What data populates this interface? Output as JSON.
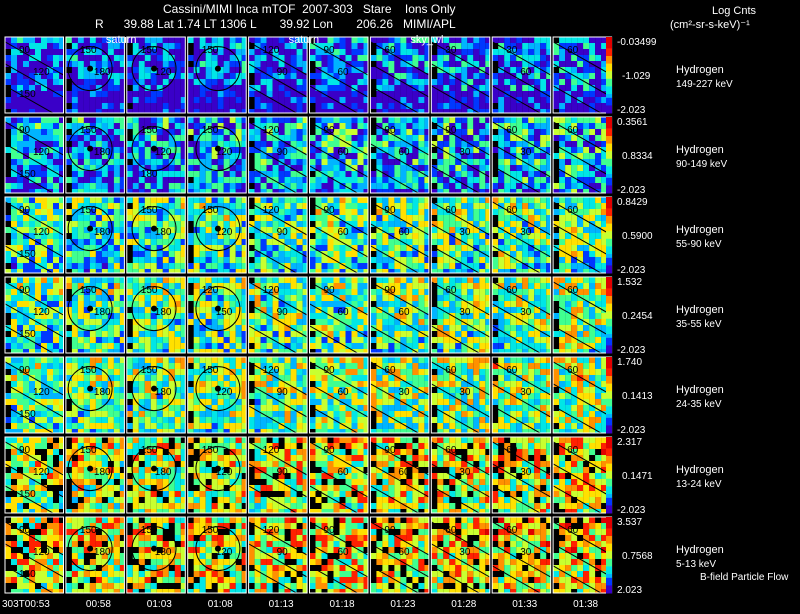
{
  "header": {
    "title": "Cassini/MIMI Inca mTOF  2007-303   Stare    Ions Only",
    "position_line": "R      39.88 Lat 1.74 LT 1306 L       39.92 Lon       206.26   MIMI/APL",
    "units_title": "Log Cnts",
    "units": "(cm²-sr-s-keV)⁻¹"
  },
  "footer_note": "B-field Particle Flow",
  "chart_data": {
    "type": "heatmap",
    "title": "Cassini/MIMI Inca mTOF  2007-303   Stare    Ions Only",
    "times": [
      "303T00:53",
      "00:58",
      "01:03",
      "01:08",
      "01:13",
      "01:18",
      "01:23",
      "01:28",
      "01:33",
      "01:38"
    ],
    "frame_annotations": [
      {
        "frame": 1,
        "text": "saturn"
      },
      {
        "frame": 4,
        "text": "saturn"
      },
      {
        "frame": 6,
        "text": "sky_wl"
      }
    ],
    "colorscale": [
      "#3a00c8",
      "#0038ff",
      "#00b4ff",
      "#00e6e6",
      "#40ff90",
      "#c8ff30",
      "#ffe000",
      "#ff9000",
      "#ff2000",
      "#e00000"
    ],
    "channels": [
      {
        "species": "Hydrogen",
        "energy": "149-227 keV",
        "max": "-0.03499",
        "mid": "-1.029",
        "min": "-2.023",
        "contours": [
          [
            "90",
            "120",
            "150"
          ],
          [
            "150",
            "180"
          ],
          [
            "150",
            "120"
          ],
          [
            "150"
          ],
          [
            "120",
            "90"
          ],
          [
            "90",
            "60"
          ],
          [
            "60"
          ],
          [
            "30"
          ],
          [
            "30",
            "60"
          ],
          [
            "60"
          ]
        ]
      },
      {
        "species": "Hydrogen",
        "energy": "90-149 keV",
        "max": "0.3561",
        "mid": "0.8334",
        "min": "-2.023",
        "contours": [
          [
            "90",
            "120",
            "150"
          ],
          [
            "150",
            "180"
          ],
          [
            "150",
            "120",
            "180"
          ],
          [
            "150",
            "120"
          ],
          [
            "120",
            "90"
          ],
          [
            "90",
            "60"
          ],
          [
            "90",
            "60"
          ],
          [
            "90",
            "30"
          ],
          [
            "60",
            "30"
          ],
          [
            "60"
          ]
        ]
      },
      {
        "species": "Hydrogen",
        "energy": "55-90 keV",
        "max": "0.8429",
        "mid": "0.5900",
        "min": "-2.023",
        "contours": [
          [
            "90",
            "120",
            "150"
          ],
          [
            "150",
            "180"
          ],
          [
            "150",
            "180"
          ],
          [
            "150",
            "120"
          ],
          [
            "120",
            "90"
          ],
          [
            "90",
            "60"
          ],
          [
            "90",
            "60"
          ],
          [
            "60",
            "30"
          ],
          [
            "60",
            "30"
          ],
          [
            "60"
          ]
        ]
      },
      {
        "species": "Hydrogen",
        "energy": "35-55 keV",
        "max": "1.532",
        "mid": "0.2454",
        "min": "-2.023",
        "contours": [
          [
            "90",
            "120",
            "150"
          ],
          [
            "150",
            "180"
          ],
          [
            "150",
            "180"
          ],
          [
            "120",
            "150"
          ],
          [
            "120",
            "90"
          ],
          [
            "90",
            "60"
          ],
          [
            "90",
            "60"
          ],
          [
            "60",
            "30"
          ],
          [
            "60",
            "30"
          ],
          [
            "60"
          ]
        ]
      },
      {
        "species": "Hydrogen",
        "energy": "24-35 keV",
        "max": "1.740",
        "mid": "0.1413",
        "min": "-2.023",
        "contours": [
          [
            "90",
            "120",
            "150"
          ],
          [
            "150",
            "180"
          ],
          [
            "150",
            "180"
          ],
          [
            "150",
            "120"
          ],
          [
            "120",
            "90"
          ],
          [
            "90",
            "60"
          ],
          [
            "60",
            "30"
          ],
          [
            "60",
            "30"
          ],
          [
            "60",
            "30"
          ],
          [
            "60"
          ]
        ]
      },
      {
        "species": "Hydrogen",
        "energy": "13-24 keV",
        "max": "2.317",
        "mid": "0.1471",
        "min": "-2.023",
        "contours": [
          [
            "90",
            "120",
            "150"
          ],
          [
            "150",
            "180"
          ],
          [
            "150",
            "180"
          ],
          [
            "150",
            "120"
          ],
          [
            "120",
            "90"
          ],
          [
            "90",
            "60"
          ],
          [
            "90",
            "60"
          ],
          [
            "60",
            "30"
          ],
          [
            "60",
            "30"
          ],
          [
            "60"
          ]
        ]
      },
      {
        "species": "Hydrogen",
        "energy": "5-13 keV",
        "max": "3.537",
        "mid": "0.7568",
        "min": "2.023",
        "contours": [
          [
            "90",
            "120",
            "150"
          ],
          [
            "150",
            "180"
          ],
          [
            "150",
            "180"
          ],
          [
            "150",
            "120"
          ],
          [
            "120",
            "90"
          ],
          [
            "90",
            "60"
          ],
          [
            "90",
            "60"
          ],
          [
            "60",
            "30"
          ],
          [
            "60",
            "30"
          ],
          [
            "60"
          ]
        ]
      }
    ],
    "grid": false,
    "legend": "right"
  }
}
